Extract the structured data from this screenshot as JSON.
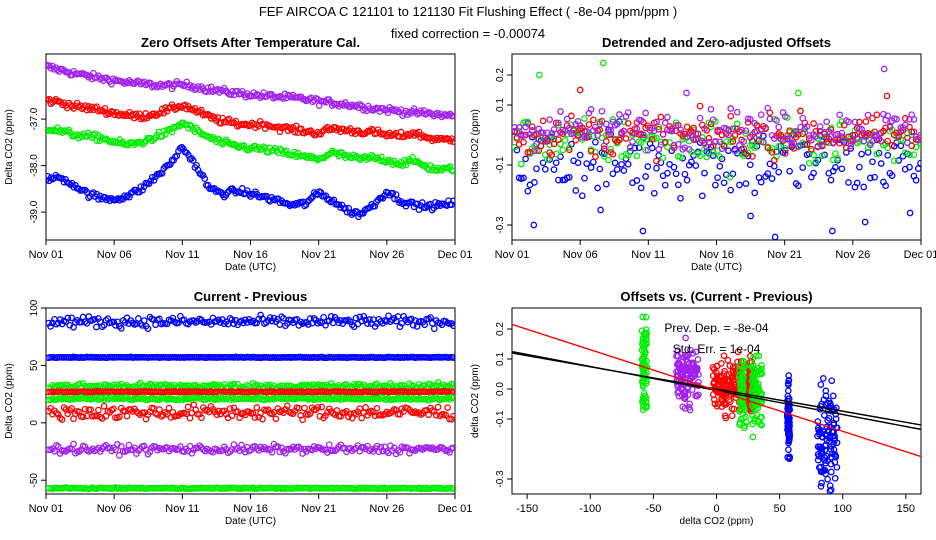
{
  "header": {
    "title": "FEF   AIRCOA C   121101 to 121130   Fit Flushing Effect ( -8e-04 ppm/ppm )",
    "subtitle": "fixed correction = -0.00074"
  },
  "colors": {
    "purple": "#a020f0",
    "red": "#ff0000",
    "green": "#00ee00",
    "blue": "#0000ff",
    "black": "#000000"
  },
  "chart_data": [
    {
      "id": "p1",
      "type": "scatter",
      "title": "Zero Offsets After Temperature Cal.",
      "xlabel": "Date (UTC)",
      "ylabel": "Delta CO2 (ppm)",
      "xlim": [
        0,
        30
      ],
      "ylim": [
        -39.6,
        -35.6
      ],
      "xticks": [
        0,
        5,
        10,
        15,
        20,
        25,
        30
      ],
      "xticklabels": [
        "Nov 01",
        "Nov 06",
        "Nov 11",
        "Nov 16",
        "Nov 21",
        "Nov 26",
        "Dec 01"
      ],
      "yticks": [
        -39,
        -38,
        -37
      ],
      "yticklabels": [
        "-39.0",
        "-38.0",
        "-37.0"
      ],
      "series": [
        {
          "color": "purple",
          "x": [
            0,
            1,
            2,
            3,
            4,
            5,
            6,
            7,
            8,
            9,
            10,
            11,
            12,
            13,
            14,
            15,
            16,
            17,
            18,
            19,
            20,
            21,
            22,
            23,
            24,
            25,
            26,
            27,
            28,
            29,
            30
          ],
          "y": [
            -35.87,
            -35.94,
            -36.01,
            -36.07,
            -36.12,
            -36.17,
            -36.21,
            -36.24,
            -36.27,
            -36.28,
            -36.26,
            -36.3,
            -36.36,
            -36.41,
            -36.44,
            -36.47,
            -36.5,
            -36.52,
            -36.54,
            -36.57,
            -36.62,
            -36.65,
            -36.68,
            -36.72,
            -36.77,
            -36.8,
            -36.83,
            -36.86,
            -36.88,
            -36.91,
            -36.93
          ]
        },
        {
          "color": "red",
          "x": [
            0,
            1,
            2,
            3,
            4,
            5,
            6,
            7,
            8,
            9,
            10,
            11,
            12,
            13,
            14,
            15,
            16,
            17,
            18,
            19,
            20,
            21,
            22,
            23,
            24,
            25,
            26,
            27,
            28,
            29,
            30
          ],
          "y": [
            -36.6,
            -36.63,
            -36.72,
            -36.76,
            -36.8,
            -36.87,
            -36.92,
            -36.94,
            -36.88,
            -36.8,
            -36.7,
            -36.82,
            -36.96,
            -37.05,
            -37.1,
            -37.12,
            -37.11,
            -37.18,
            -37.22,
            -37.26,
            -37.3,
            -37.2,
            -37.24,
            -37.27,
            -37.28,
            -37.34,
            -37.36,
            -37.3,
            -37.4,
            -37.45,
            -37.43
          ]
        },
        {
          "color": "green",
          "x": [
            0,
            1,
            2,
            3,
            4,
            5,
            6,
            7,
            8,
            9,
            10,
            11,
            12,
            13,
            14,
            15,
            16,
            17,
            18,
            19,
            20,
            21,
            22,
            23,
            24,
            25,
            26,
            27,
            28,
            29,
            30
          ],
          "y": [
            -37.2,
            -37.25,
            -37.33,
            -37.37,
            -37.4,
            -37.49,
            -37.55,
            -37.5,
            -37.38,
            -37.28,
            -37.08,
            -37.25,
            -37.4,
            -37.52,
            -37.58,
            -37.62,
            -37.65,
            -37.7,
            -37.75,
            -37.82,
            -37.85,
            -37.73,
            -37.8,
            -37.86,
            -37.83,
            -37.88,
            -37.95,
            -37.9,
            -38.03,
            -38.1,
            -38.05
          ]
        },
        {
          "color": "blue",
          "x": [
            0,
            1,
            2,
            3,
            4,
            5,
            6,
            7,
            8,
            9,
            10,
            11,
            12,
            13,
            14,
            15,
            16,
            17,
            18,
            19,
            20,
            21,
            22,
            23,
            24,
            25,
            26,
            27,
            28,
            29,
            30
          ],
          "y": [
            -38.3,
            -38.25,
            -38.4,
            -38.6,
            -38.7,
            -38.72,
            -38.65,
            -38.5,
            -38.25,
            -38.0,
            -37.6,
            -38.0,
            -38.5,
            -38.6,
            -38.55,
            -38.6,
            -38.68,
            -38.75,
            -38.85,
            -38.82,
            -38.58,
            -38.75,
            -38.95,
            -39.05,
            -38.85,
            -38.55,
            -38.75,
            -38.85,
            -38.88,
            -38.85,
            -38.8
          ]
        }
      ]
    },
    {
      "id": "p2",
      "type": "scatter",
      "title": "Detrended and Zero-adjusted Offsets",
      "xlabel": "Date (UTC)",
      "ylabel": "Delta CO2 (ppm)",
      "xlim": [
        0,
        30
      ],
      "ylim": [
        -0.35,
        0.27
      ],
      "xticks": [
        0,
        5,
        10,
        15,
        20,
        25,
        30
      ],
      "xticklabels": [
        "Nov 01",
        "Nov 06",
        "Nov 11",
        "Nov 16",
        "Nov 21",
        "Nov 26",
        "Dec 01"
      ],
      "yticks": [
        -0.3,
        -0.1,
        0.1,
        0.2
      ],
      "yticklabels": [
        "-0.3",
        "-0.1",
        "0.1",
        "0.2"
      ],
      "series": [
        {
          "color": "blue",
          "center": -0.09,
          "spread": 0.11,
          "outliers": [
            [
              1.6,
              -0.3
            ],
            [
              6.5,
              -0.25
            ],
            [
              9.6,
              -0.32
            ],
            [
              17.5,
              -0.27
            ],
            [
              19.3,
              -0.34
            ],
            [
              23.5,
              -0.32
            ],
            [
              25.9,
              -0.29
            ],
            [
              29.2,
              -0.26
            ]
          ]
        },
        {
          "color": "green",
          "center": -0.02,
          "spread": 0.07,
          "outliers": [
            [
              2.0,
              0.2
            ],
            [
              6.7,
              0.24
            ],
            [
              21.0,
              0.14
            ],
            [
              16.0,
              -0.14
            ]
          ]
        },
        {
          "color": "red",
          "center": 0.0,
          "spread": 0.06,
          "outliers": [
            [
              5.0,
              0.15
            ],
            [
              27.5,
              0.13
            ]
          ]
        },
        {
          "color": "purple",
          "center": 0.02,
          "spread": 0.06,
          "outliers": [
            [
              27.3,
              0.22
            ],
            [
              12.8,
              0.14
            ]
          ]
        }
      ]
    },
    {
      "id": "p3",
      "type": "scatter",
      "title": "Current - Previous",
      "xlabel": "Date (UTC)",
      "ylabel": "Delta CO2 (ppm)",
      "xlim": [
        0,
        30
      ],
      "ylim": [
        -62,
        100
      ],
      "xticks": [
        0,
        5,
        10,
        15,
        20,
        25,
        30
      ],
      "xticklabels": [
        "Nov 01",
        "Nov 06",
        "Nov 11",
        "Nov 16",
        "Nov 21",
        "Nov 26",
        "Dec 01"
      ],
      "yticks": [
        -50,
        0,
        50,
        100
      ],
      "yticklabels": [
        "-50",
        "0",
        "50",
        "100"
      ],
      "series": [
        {
          "color": "blue",
          "level": 88,
          "jitter": 4
        },
        {
          "color": "blue",
          "level": 57,
          "jitter": 0.3
        },
        {
          "color": "green",
          "level": 32,
          "jitter": 2
        },
        {
          "color": "red",
          "level": 27,
          "jitter": 0.4
        },
        {
          "color": "green",
          "level": 21,
          "jitter": 1
        },
        {
          "color": "red",
          "level": 9,
          "jitter": 5
        },
        {
          "color": "purple",
          "level": -23,
          "jitter": 3
        },
        {
          "color": "green",
          "level": -57,
          "jitter": 0.4
        }
      ]
    },
    {
      "id": "p4",
      "type": "scatter",
      "title": "Offsets vs. (Current - Previous)",
      "xlabel": "delta CO2 (ppm)",
      "ylabel": "delta CO2 (ppm)",
      "xlim": [
        -162,
        162
      ],
      "ylim": [
        -0.35,
        0.27
      ],
      "xticks": [
        -150,
        -100,
        -50,
        0,
        50,
        100,
        150
      ],
      "xticklabels": [
        "-150",
        "-100",
        "-50",
        "0",
        "50",
        "100",
        "150"
      ],
      "yticks": [
        -0.3,
        -0.1,
        0.0,
        0.1,
        0.2
      ],
      "yticklabels": [
        "-0.3",
        "-0.1",
        "0.0",
        "0.1",
        "0.2"
      ],
      "annotations": [
        "Prev. Dep. =  -8e-04",
        "Std. Err. =  1e-04"
      ],
      "clusters": [
        {
          "color": "green",
          "x": -57,
          "ymin": -0.12,
          "ymax": 0.24,
          "width": 2
        },
        {
          "color": "purple",
          "x": -23,
          "ymin": -0.07,
          "ymax": 0.17,
          "width": 9
        },
        {
          "color": "red",
          "x": 9,
          "ymin": -0.1,
          "ymax": 0.13,
          "width": 12
        },
        {
          "color": "green",
          "x": 21,
          "ymin": -0.14,
          "ymax": 0.12,
          "width": 3
        },
        {
          "color": "red",
          "x": 27,
          "ymin": -0.11,
          "ymax": 0.12,
          "width": 1
        },
        {
          "color": "green",
          "x": 32,
          "ymin": -0.16,
          "ymax": 0.14,
          "width": 4
        },
        {
          "color": "blue",
          "x": 57,
          "ymin": -0.27,
          "ymax": 0.07,
          "width": 1
        },
        {
          "color": "blue",
          "x": 88,
          "ymin": -0.34,
          "ymax": 0.05,
          "width": 8
        }
      ],
      "lines": [
        {
          "color": "black",
          "slope": -0.00074,
          "intercept": 0.0
        },
        {
          "color": "black",
          "slope": -0.0008,
          "intercept": -0.005
        },
        {
          "color": "red",
          "slope": -0.00136,
          "intercept": -0.005
        }
      ]
    }
  ]
}
